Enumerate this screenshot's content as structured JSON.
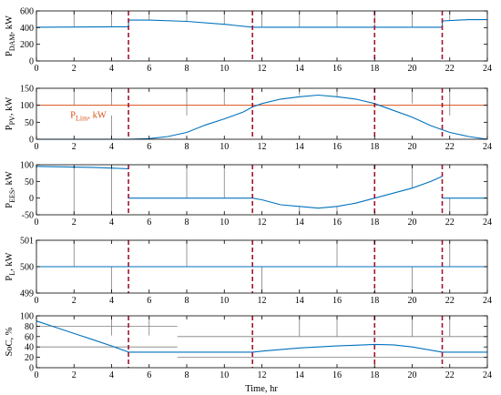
{
  "chart_data": {
    "type": "line",
    "xlabel": "Time, hr",
    "xlim": [
      0,
      24
    ],
    "xticks": [
      "0",
      "2",
      "4",
      "6",
      "8",
      "10",
      "12",
      "14",
      "16",
      "18",
      "20",
      "22",
      "24"
    ],
    "event_lines_x": [
      4.9,
      11.5,
      18,
      21.6
    ],
    "colors": {
      "series": "#0072BD",
      "limit": "#D95319",
      "event": "#A2142F",
      "grid": "#7f7f7f"
    },
    "panels": [
      {
        "id": "dam",
        "ylabel_main": "P",
        "ylabel_sub": "DAM",
        "ylabel_unit": ", kW",
        "ylim": [
          0,
          600
        ],
        "yticks": [
          "0",
          "200",
          "400",
          "600"
        ],
        "series": [
          {
            "x": [
              0,
              4.9,
              4.9,
              6,
              8,
              10,
              11.5,
              14,
              16,
              18,
              20,
              21.6,
              21.6,
              23,
              24
            ],
            "y": [
              405,
              410,
              490,
              490,
              475,
              440,
              405,
              405,
              405,
              405,
              405,
              405,
              480,
              495,
              495
            ]
          }
        ],
        "vlines": [
          {
            "x": 2.0,
            "y0": 405,
            "y1": 600
          },
          {
            "x": 4.0,
            "y0": 405,
            "y1": 600
          },
          {
            "x": 6.0,
            "y0": 490,
            "y1": 600
          },
          {
            "x": 8.0,
            "y0": 475,
            "y1": 600
          },
          {
            "x": 10.0,
            "y0": 440,
            "y1": 600
          },
          {
            "x": 12.0,
            "y0": 405,
            "y1": 600
          },
          {
            "x": 14.0,
            "y0": 405,
            "y1": 600
          },
          {
            "x": 16.0,
            "y0": 405,
            "y1": 600
          },
          {
            "x": 18.0,
            "y0": 405,
            "y1": 600
          },
          {
            "x": 20.0,
            "y0": 405,
            "y1": 600
          },
          {
            "x": 22.0,
            "y0": 480,
            "y1": 600
          }
        ],
        "hlines": []
      },
      {
        "id": "pv",
        "ylabel_main": "P",
        "ylabel_sub": "PV",
        "ylabel_unit": ", kW",
        "ylim": [
          0,
          150
        ],
        "yticks": [
          "0",
          "50",
          "100",
          "150"
        ],
        "limit": {
          "value": 100,
          "label_main": "P",
          "label_sub": "Lim",
          "label_unit": ", kW",
          "label_x": 1.8
        },
        "series": [
          {
            "x": [
              0,
              4.9,
              6,
              7,
              8,
              9,
              10,
              11,
              11.5,
              12,
              13,
              14,
              15,
              16,
              17,
              18,
              19,
              20,
              21,
              22,
              23,
              24
            ],
            "y": [
              0,
              0,
              2,
              8,
              20,
              42,
              60,
              80,
              95,
              105,
              118,
              125,
              130,
              125,
              118,
              105,
              85,
              65,
              40,
              20,
              8,
              0
            ]
          }
        ],
        "vlines": [
          {
            "x": 2.0,
            "y0": 100,
            "y1": 150
          },
          {
            "x": 4.0,
            "y0": 0,
            "y1": 70
          },
          {
            "x": 4.0,
            "y0": 100,
            "y1": 150
          },
          {
            "x": 8.0,
            "y0": 70,
            "y1": 150
          },
          {
            "x": 10.0,
            "y0": 100,
            "y1": 150
          },
          {
            "x": 14.0,
            "y0": 130,
            "y1": 150
          },
          {
            "x": 16.0,
            "y0": 125,
            "y1": 150
          },
          {
            "x": 20.0,
            "y0": 105,
            "y1": 150
          },
          {
            "x": 22.0,
            "y0": 70,
            "y1": 150
          }
        ],
        "hlines": []
      },
      {
        "id": "ees",
        "ylabel_main": "P",
        "ylabel_sub": "EES",
        "ylabel_unit": ", kW",
        "ylim": [
          -50,
          100
        ],
        "yticks": [
          "-50",
          "0",
          "50",
          "100"
        ],
        "series": [
          {
            "x": [
              0,
              1,
              2,
              3,
              4,
              4.9
            ],
            "y": [
              95,
              94,
              93,
              92,
              90,
              88
            ]
          },
          {
            "x": [
              4.9,
              6,
              8,
              10,
              11.5,
              12,
              13,
              14,
              15,
              16,
              17,
              18,
              19,
              20,
              21,
              21.6
            ],
            "y": [
              0,
              0,
              0,
              0,
              0,
              -5,
              -20,
              -25,
              -30,
              -25,
              -15,
              0,
              15,
              30,
              50,
              65
            ]
          },
          {
            "x": [
              21.6,
              22,
              23,
              24
            ],
            "y": [
              0,
              0,
              0,
              0
            ]
          }
        ],
        "vlines": [
          {
            "x": 2.0,
            "y0": -50,
            "y1": 93
          },
          {
            "x": 4.0,
            "y0": -50,
            "y1": 90
          },
          {
            "x": 8.0,
            "y0": 0,
            "y1": 100
          },
          {
            "x": 10.0,
            "y0": 0,
            "y1": 100
          },
          {
            "x": 14.0,
            "y0": -50,
            "y1": -25
          },
          {
            "x": 16.0,
            "y0": -50,
            "y1": -25
          },
          {
            "x": 20.0,
            "y0": 30,
            "y1": 100
          },
          {
            "x": 22.0,
            "y0": -50,
            "y1": 0
          }
        ],
        "hlines": []
      },
      {
        "id": "load",
        "ylabel_main": "P",
        "ylabel_sub": "L",
        "ylabel_unit": ", kW",
        "ylim": [
          499,
          501
        ],
        "yticks": [
          "499",
          "500",
          "501"
        ],
        "series": [
          {
            "x": [
              0,
              24
            ],
            "y": [
              500,
              500
            ]
          }
        ],
        "vlines": [
          {
            "x": 2.0,
            "y0": 500,
            "y1": 501
          },
          {
            "x": 4.0,
            "y0": 499,
            "y1": 500
          },
          {
            "x": 8.0,
            "y0": 500,
            "y1": 501
          },
          {
            "x": 12.0,
            "y0": 499,
            "y1": 500
          },
          {
            "x": 16.0,
            "y0": 500,
            "y1": 501
          },
          {
            "x": 20.0,
            "y0": 499,
            "y1": 500
          },
          {
            "x": 22.0,
            "y0": 500,
            "y1": 501
          }
        ],
        "hlines": []
      },
      {
        "id": "soc",
        "ylabel_main": "SoC, %",
        "ylabel_sub": "",
        "ylabel_unit": "",
        "ylim": [
          0,
          100
        ],
        "yticks": [
          "0",
          "20",
          "40",
          "60",
          "80",
          "100"
        ],
        "series": [
          {
            "x": [
              0,
              1,
              2,
              3,
              4,
              4.9
            ],
            "y": [
              90,
              78,
              66,
              54,
              42,
              30
            ]
          },
          {
            "x": [
              4.9,
              6,
              8,
              10,
              11.5,
              12,
              14,
              16,
              18,
              19,
              20,
              21.6
            ],
            "y": [
              30,
              30,
              30,
              30,
              30,
              32,
              38,
              42,
              45,
              44,
              40,
              30
            ]
          },
          {
            "x": [
              21.6,
              22,
              23,
              24
            ],
            "y": [
              30,
              30,
              30,
              30
            ]
          }
        ],
        "vlines": [
          {
            "x": 4.0,
            "y0": 62,
            "y1": 100
          },
          {
            "x": 6.0,
            "y0": 62,
            "y1": 100
          },
          {
            "x": 14.0,
            "y0": 60,
            "y1": 100
          },
          {
            "x": 16.0,
            "y0": 60,
            "y1": 100
          },
          {
            "x": 20.0,
            "y0": 60,
            "y1": 100
          },
          {
            "x": 22.0,
            "y0": 60,
            "y1": 100
          }
        ],
        "hlines": [
          {
            "y": 80,
            "x0": 0,
            "x1": 7.5
          },
          {
            "y": 60,
            "x0": 7.5,
            "x1": 24
          },
          {
            "y": 40,
            "x0": 0,
            "x1": 7.5
          },
          {
            "y": 20,
            "x0": 7.5,
            "x1": 24
          }
        ]
      }
    ]
  }
}
